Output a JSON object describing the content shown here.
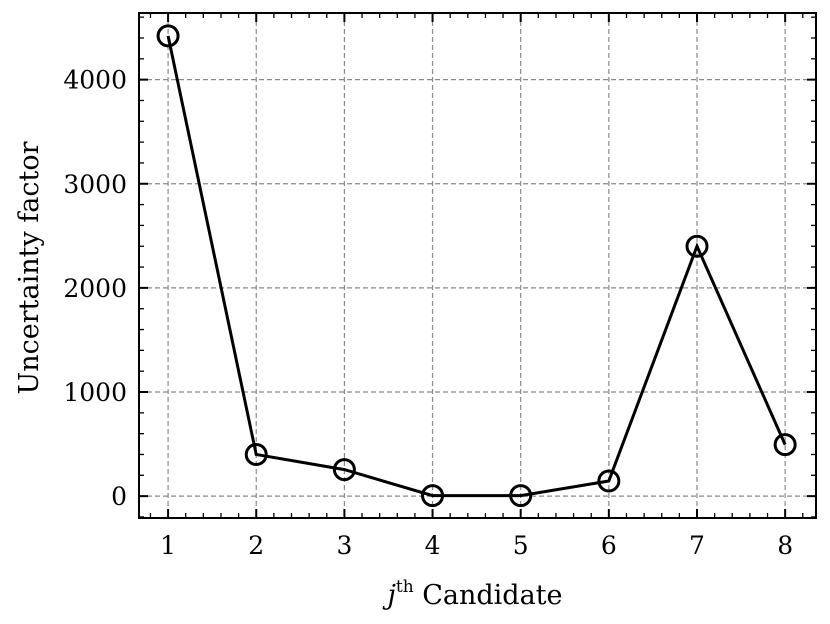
{
  "chart_data": {
    "type": "line",
    "xlabel_base": "j",
    "xlabel_sup": "th",
    "xlabel_rest": " Candidate",
    "ylabel": "Uncertainty factor",
    "x": [
      1,
      2,
      3,
      4,
      5,
      6,
      7,
      8
    ],
    "y": [
      4420,
      400,
      255,
      5,
      5,
      145,
      2400,
      495
    ],
    "xlim": [
      0.67,
      8.35
    ],
    "ylim": [
      -210,
      4640
    ],
    "xticks": [
      1,
      2,
      3,
      4,
      5,
      6,
      7,
      8
    ],
    "yticks": [
      0,
      1000,
      2000,
      3000,
      4000
    ],
    "grid": true,
    "marker": "open-circle",
    "line_color": "#000000"
  }
}
